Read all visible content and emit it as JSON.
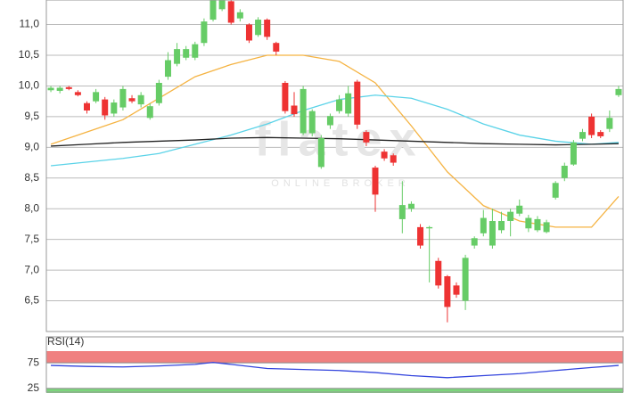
{
  "chart_data": [
    {
      "type": "candlestick",
      "watermark": "flatex",
      "watermark_sub": "ONLINE BROKER",
      "up_color": "#66cc66",
      "down_color": "#ee3333",
      "open": [
        9.93,
        9.92,
        9.98,
        9.9,
        9.72,
        9.75,
        9.78,
        9.55,
        9.65,
        9.8,
        9.7,
        9.48,
        9.72,
        10.15,
        10.36,
        10.46,
        10.46,
        10.7,
        11.08,
        11.25,
        11.38,
        11.1,
        11.0,
        10.83,
        11.08,
        10.7,
        10.05,
        9.68,
        9.23,
        9.23,
        8.68,
        9.36,
        9.59,
        9.55,
        10.07,
        9.25,
        8.67,
        8.93,
        8.87,
        7.83,
        8.0,
        7.7,
        7.68,
        7.15,
        6.9,
        6.75,
        6.5,
        7.4,
        7.6,
        7.4,
        7.65,
        7.8,
        7.92,
        7.68,
        7.65,
        7.62,
        8.18,
        8.5,
        8.72,
        9.14,
        9.5,
        9.25,
        9.3,
        9.85
      ],
      "close": [
        9.97,
        9.97,
        9.95,
        9.85,
        9.6,
        9.9,
        9.52,
        9.73,
        9.95,
        9.75,
        9.85,
        9.67,
        10.05,
        10.42,
        10.6,
        10.6,
        10.68,
        11.05,
        11.4,
        11.4,
        11.03,
        11.2,
        10.74,
        11.08,
        10.8,
        10.56,
        9.59,
        9.54,
        9.95,
        9.59,
        9.15,
        9.51,
        9.78,
        9.88,
        9.37,
        9.08,
        8.23,
        8.82,
        8.75,
        8.06,
        8.08,
        7.4,
        7.7,
        6.75,
        6.4,
        6.6,
        7.2,
        7.52,
        7.85,
        7.8,
        7.8,
        7.95,
        8.05,
        7.85,
        7.83,
        7.78,
        8.42,
        8.7,
        9.08,
        9.25,
        9.2,
        9.18,
        9.48,
        9.95
      ],
      "high": [
        10.0,
        10.0,
        10.0,
        9.93,
        9.75,
        9.95,
        9.82,
        9.78,
        10.0,
        9.85,
        9.9,
        9.72,
        10.1,
        10.55,
        10.7,
        10.65,
        10.72,
        11.1,
        11.42,
        11.42,
        11.4,
        11.25,
        11.02,
        11.12,
        11.1,
        10.72,
        10.08,
        9.9,
        10.0,
        9.62,
        9.2,
        9.55,
        9.85,
        10.0,
        10.1,
        9.28,
        8.7,
        8.97,
        8.9,
        8.45,
        8.12,
        7.75,
        7.72,
        7.2,
        6.92,
        6.8,
        7.25,
        7.55,
        7.98,
        8.0,
        7.95,
        8.0,
        8.15,
        7.9,
        7.88,
        7.82,
        8.45,
        8.75,
        9.12,
        9.3,
        9.55,
        9.28,
        9.6,
        10.0
      ],
      "low": [
        9.9,
        9.88,
        9.93,
        9.83,
        9.55,
        9.72,
        9.45,
        9.5,
        9.6,
        9.72,
        9.65,
        9.45,
        9.68,
        10.1,
        10.32,
        10.42,
        10.42,
        10.65,
        11.05,
        11.22,
        11.0,
        11.05,
        10.7,
        10.8,
        10.75,
        10.5,
        9.55,
        9.5,
        9.2,
        9.18,
        8.65,
        9.3,
        9.55,
        9.5,
        9.3,
        9.02,
        7.95,
        8.78,
        8.7,
        7.6,
        7.95,
        7.35,
        6.8,
        6.7,
        6.15,
        6.55,
        6.35,
        7.35,
        7.55,
        7.35,
        7.6,
        7.55,
        7.88,
        7.62,
        7.62,
        7.6,
        8.15,
        8.45,
        8.7,
        9.1,
        9.15,
        9.15,
        9.25,
        9.82
      ],
      "series": [
        {
          "color": "#f5b342",
          "x": [
            0,
            4,
            8,
            12,
            16,
            20,
            24,
            28,
            32,
            36,
            40,
            44,
            48,
            52,
            56,
            60,
            63
          ],
          "values": [
            9.05,
            9.25,
            9.45,
            9.8,
            10.15,
            10.35,
            10.5,
            10.5,
            10.4,
            10.05,
            9.35,
            8.6,
            8.05,
            7.8,
            7.7,
            7.7,
            8.2
          ]
        },
        {
          "color": "#5bd3e8",
          "x": [
            0,
            4,
            8,
            12,
            16,
            20,
            24,
            28,
            32,
            36,
            40,
            44,
            48,
            52,
            56,
            60,
            63
          ],
          "values": [
            8.7,
            8.76,
            8.82,
            8.9,
            9.05,
            9.2,
            9.38,
            9.6,
            9.78,
            9.85,
            9.8,
            9.62,
            9.38,
            9.2,
            9.1,
            9.05,
            9.08
          ]
        },
        {
          "color": "#222222",
          "x": [
            0,
            4,
            8,
            12,
            16,
            20,
            24,
            28,
            32,
            36,
            40,
            44,
            48,
            52,
            56,
            60,
            63
          ],
          "values": [
            9.02,
            9.05,
            9.08,
            9.1,
            9.12,
            9.15,
            9.16,
            9.15,
            9.14,
            9.12,
            9.1,
            9.08,
            9.06,
            9.05,
            9.04,
            9.05,
            9.06
          ]
        }
      ],
      "ylim": [
        6.0,
        11.4
      ],
      "yticks": [
        {
          "value": 6.5,
          "label": "6,5"
        },
        {
          "value": 7.0,
          "label": "7,0"
        },
        {
          "value": 7.5,
          "label": "7,5"
        },
        {
          "value": 8.0,
          "label": "8,0"
        },
        {
          "value": 8.5,
          "label": "8,5"
        },
        {
          "value": 9.0,
          "label": "9,0"
        },
        {
          "value": 9.5,
          "label": "9,5"
        },
        {
          "value": 10.0,
          "label": "10,0"
        },
        {
          "value": 10.5,
          "label": "10,5"
        },
        {
          "value": 11.0,
          "label": "11,0"
        }
      ],
      "grid": true
    },
    {
      "type": "line",
      "title": "RSI(14)",
      "color": "#3344dd",
      "overbought_color": "#f08080",
      "oversold_color": "#7cd67c",
      "x": [
        0,
        4,
        8,
        12,
        16,
        18,
        20,
        24,
        28,
        32,
        36,
        40,
        44,
        48,
        52,
        56,
        60,
        63
      ],
      "values": [
        70,
        68,
        67,
        69,
        72,
        76,
        72,
        64,
        62,
        60,
        56,
        50,
        46,
        50,
        54,
        60,
        66,
        70
      ],
      "ylim": [
        16,
        98
      ],
      "yticks": [
        25,
        75
      ]
    }
  ]
}
